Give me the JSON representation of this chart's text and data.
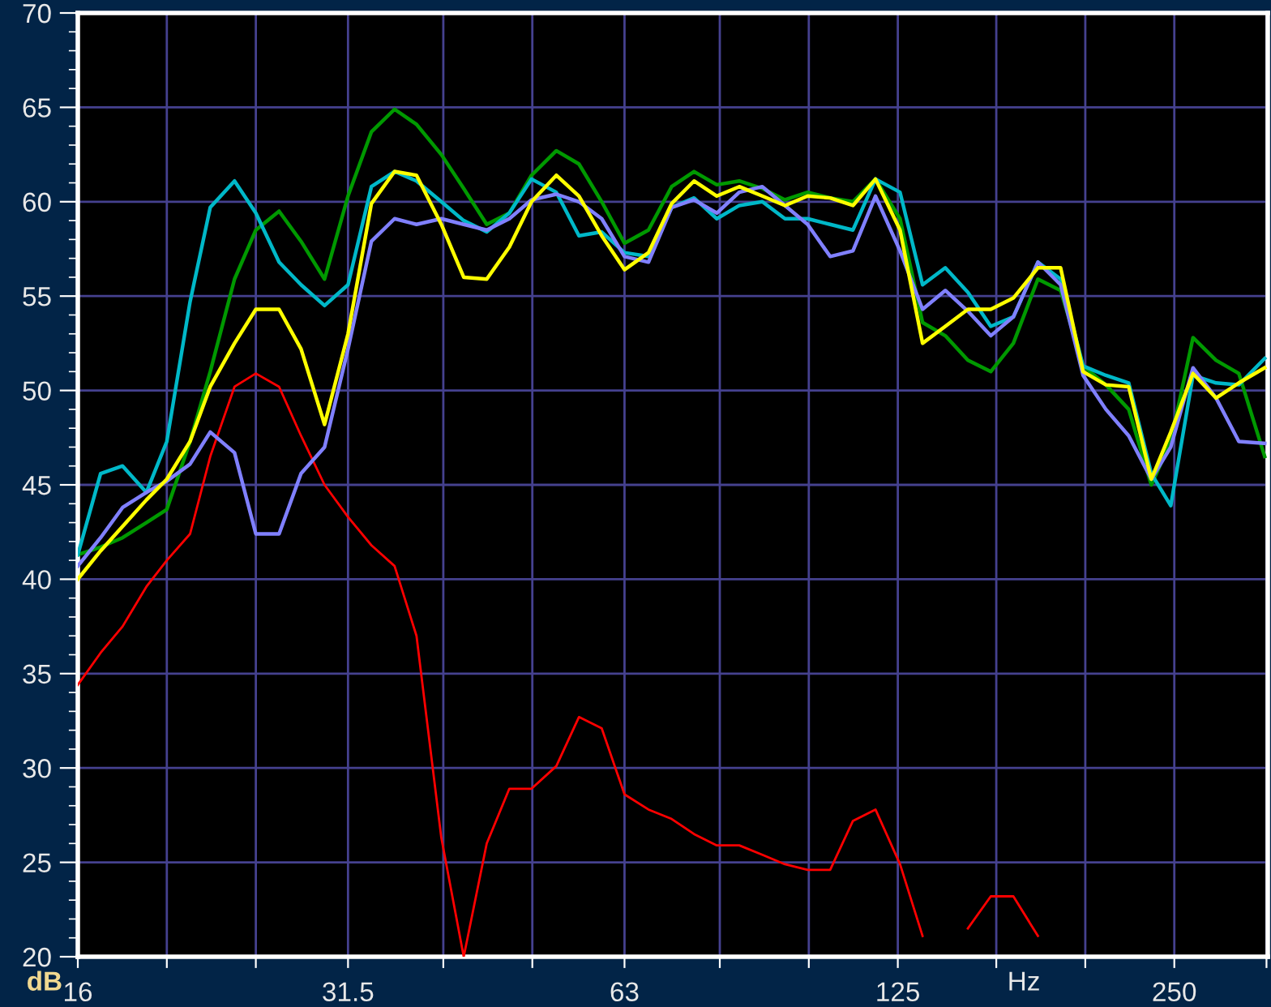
{
  "chart_data": {
    "type": "line",
    "xlabel": "Hz",
    "ylabel": "dB",
    "log": "x",
    "grid": true,
    "legend": false,
    "marker": "none",
    "line_style": "solid",
    "x": [
      16.0,
      16.94,
      17.9,
      19.0,
      20.0,
      21.2,
      22.3,
      23.7,
      25.0,
      26.5,
      28.0,
      29.7,
      31.5,
      33.4,
      35.4,
      37.4,
      39.8,
      42.1,
      44.6,
      47.2,
      49.9,
      53.1,
      56.2,
      59.5,
      63,
      66.9,
      70.9,
      75.0,
      79.4,
      84.0,
      89.0,
      94.2,
      99.7,
      105.5,
      111.7,
      118.2,
      125.7,
      133,
      140.8,
      149,
      157.8,
      167,
      177.6,
      188,
      198.9,
      210.6,
      223,
      236,
      247.8,
      262,
      277.6,
      293.9,
      313.6
    ],
    "xlim": [
      16,
      316
    ],
    "xticks": [
      16,
      {
        "value": 20,
        "label": null
      },
      {
        "value": 25,
        "label": null
      },
      31.5,
      {
        "value": 40,
        "label": null
      },
      {
        "value": 50,
        "label": null
      },
      63,
      {
        "value": 80,
        "label": null
      },
      {
        "value": 100,
        "label": null
      },
      125,
      {
        "value": 160,
        "label": null
      },
      {
        "value": 200,
        "label": null
      },
      250,
      {
        "value": 315,
        "label": null
      }
    ],
    "ylim": [
      20,
      70
    ],
    "yticks": [
      20,
      25,
      30,
      35,
      40,
      45,
      50,
      55,
      60,
      65,
      70
    ],
    "series": [
      {
        "color": "#ff0000",
        "values": [
          34.4,
          36.1,
          37.5,
          39.6,
          41.0,
          42.4,
          46.5,
          50.2,
          50.9,
          50.2,
          47.6,
          45.0,
          43.3,
          41.8,
          40.7,
          37.0,
          26.3,
          20.0,
          26.0,
          28.9,
          28.9,
          30.1,
          32.7,
          32.1,
          28.6,
          27.8,
          27.3,
          26.5,
          25.9,
          25.9,
          25.4,
          24.9,
          24.6,
          24.6,
          27.2,
          27.8,
          24.9,
          21.1,
          null,
          21.5,
          23.2,
          23.2,
          21.1,
          null,
          null,
          null,
          null,
          null,
          null,
          null,
          null,
          null,
          null
        ]
      },
      {
        "color": "#009900",
        "values": [
          41.3,
          41.7,
          42.2,
          43.0,
          43.7,
          47.3,
          51.0,
          55.9,
          58.5,
          59.5,
          57.9,
          55.9,
          60.3,
          63.7,
          64.9,
          64.1,
          62.5,
          60.7,
          58.8,
          59.4,
          61.4,
          62.7,
          62.0,
          60.0,
          57.8,
          58.5,
          60.8,
          61.6,
          60.9,
          61.1,
          60.7,
          60.1,
          60.5,
          60.2,
          60.0,
          61.2,
          59.1,
          53.6,
          52.9,
          51.6,
          51.0,
          52.5,
          55.9,
          55.3,
          51.3,
          50.3,
          49.0,
          45.0,
          47.3,
          52.8,
          51.6,
          50.9,
          46.5
        ]
      },
      {
        "color": "#00b8c8",
        "values": [
          41.3,
          45.6,
          46.0,
          44.6,
          47.3,
          54.7,
          59.7,
          61.1,
          59.4,
          56.8,
          55.6,
          54.5,
          55.6,
          60.8,
          61.6,
          61.1,
          60.0,
          59.0,
          58.4,
          59.4,
          61.2,
          60.5,
          58.2,
          58.4,
          57.3,
          57.1,
          59.7,
          60.2,
          59.1,
          59.8,
          60.0,
          59.1,
          59.1,
          58.8,
          58.5,
          61.2,
          60.5,
          55.6,
          56.5,
          55.2,
          53.4,
          53.9,
          56.8,
          55.9,
          51.3,
          50.8,
          50.4,
          45.6,
          43.9,
          50.8,
          50.4,
          50.3,
          51.7
        ]
      },
      {
        "color": "#8080ff",
        "values": [
          40.7,
          42.2,
          43.8,
          44.6,
          45.2,
          46.1,
          47.8,
          46.7,
          42.4,
          42.4,
          45.6,
          47.0,
          52.2,
          57.9,
          59.1,
          58.8,
          59.1,
          58.8,
          58.5,
          59.1,
          60.1,
          60.4,
          60.0,
          59.1,
          57.1,
          56.8,
          59.7,
          60.1,
          59.4,
          60.5,
          60.8,
          59.8,
          58.8,
          57.1,
          57.4,
          60.3,
          57.4,
          54.3,
          55.3,
          54.2,
          52.9,
          53.9,
          56.8,
          55.6,
          50.8,
          49.0,
          47.6,
          45.3,
          47.0,
          51.2,
          49.6,
          47.3,
          47.2
        ]
      },
      {
        "color": "#ffff00",
        "values": [
          40.0,
          41.5,
          42.8,
          44.2,
          45.3,
          47.3,
          50.2,
          52.5,
          54.3,
          54.3,
          52.2,
          48.2,
          53.0,
          59.9,
          61.6,
          61.4,
          58.8,
          56.0,
          55.9,
          57.6,
          60.0,
          61.4,
          60.3,
          58.2,
          56.4,
          57.3,
          59.9,
          61.1,
          60.3,
          60.8,
          60.3,
          59.8,
          60.3,
          60.2,
          59.8,
          61.2,
          58.5,
          52.5,
          53.4,
          54.3,
          54.3,
          54.9,
          56.5,
          56.5,
          51.0,
          50.3,
          50.2,
          45.3,
          47.8,
          50.9,
          49.6,
          50.4,
          51.2
        ]
      }
    ]
  }
}
